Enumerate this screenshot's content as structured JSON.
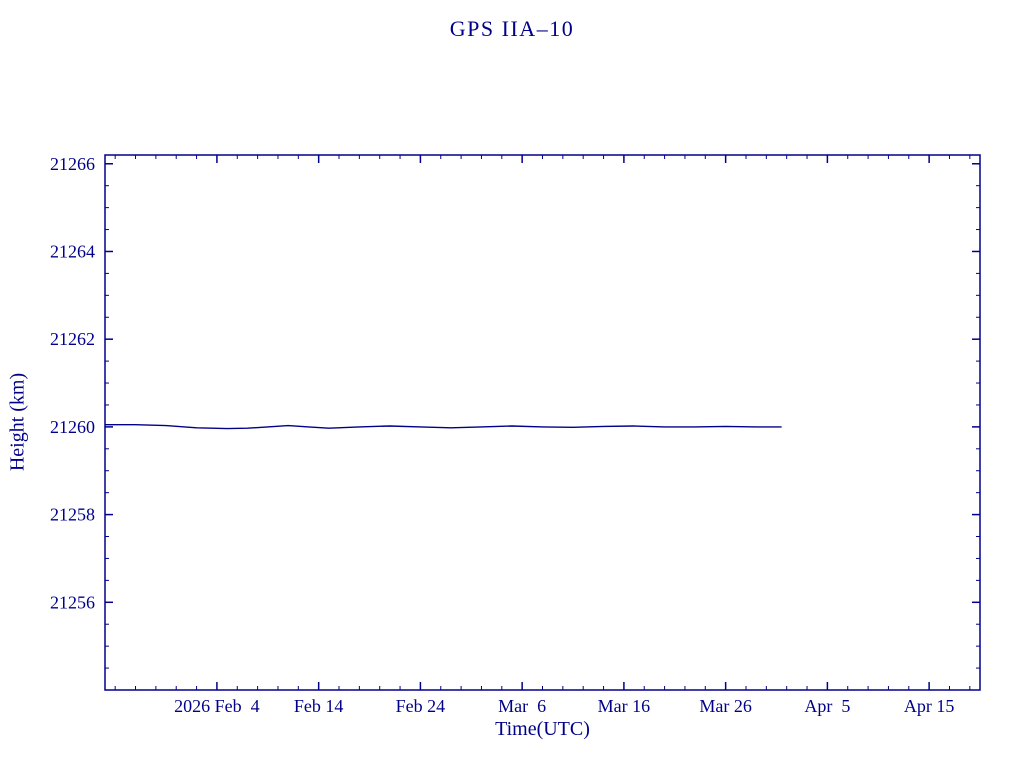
{
  "page": {
    "background": "#ffffff"
  },
  "colors": {
    "axis": "#00008b",
    "text": "#00008b",
    "line": "#00008b"
  },
  "chart_data": {
    "type": "line",
    "title": "GPS IIA–10",
    "xlabel": "Time(UTC)",
    "ylabel": "Height (km)",
    "grid": false,
    "legend": "none",
    "x_axis": {
      "unit": "days since 2026 Jan 24",
      "range": [
        0,
        86
      ],
      "major_tick_days": [
        11,
        21,
        31,
        41,
        51,
        61,
        71,
        81
      ],
      "tick_labels": [
        "2026 Feb  4",
        "Feb 14",
        "Feb 24",
        "Mar  6",
        "Mar 16",
        "Mar 26",
        "Apr  5",
        "Apr 15"
      ],
      "minor_tick_step_days": 2
    },
    "y_axis": {
      "range": [
        21254,
        21266.2
      ],
      "major_ticks": [
        21256,
        21258,
        21260,
        21262,
        21264,
        21266
      ],
      "tick_labels": [
        "21256",
        "21258",
        "21260",
        "21262",
        "21264",
        "21266"
      ],
      "minor_tick_step": 0.5
    },
    "series": [
      {
        "name": "height-km",
        "color": "#00008b",
        "x_days": [
          0,
          3,
          6,
          9,
          12,
          14,
          16,
          18,
          20,
          22,
          25,
          28,
          31,
          34,
          37,
          40,
          43,
          46,
          49,
          52,
          55,
          58,
          61,
          64,
          66.5
        ],
        "y": [
          21260.05,
          21260.05,
          21260.03,
          21259.98,
          21259.96,
          21259.97,
          21260.0,
          21260.03,
          21260.0,
          21259.97,
          21260.0,
          21260.02,
          21260.0,
          21259.98,
          21260.0,
          21260.02,
          21260.0,
          21259.99,
          21260.01,
          21260.02,
          21260.0,
          21260.0,
          21260.01,
          21260.0,
          21260.0
        ]
      }
    ]
  }
}
